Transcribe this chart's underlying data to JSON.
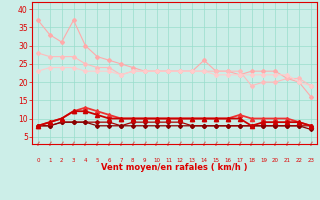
{
  "x": [
    0,
    1,
    2,
    3,
    4,
    5,
    6,
    7,
    8,
    9,
    10,
    11,
    12,
    13,
    14,
    15,
    16,
    17,
    18,
    19,
    20,
    21,
    22,
    23
  ],
  "lines": [
    {
      "y": [
        37,
        33,
        31,
        37,
        30,
        27,
        26,
        25,
        24,
        23,
        23,
        23,
        23,
        23,
        26,
        23,
        23,
        22,
        23,
        23,
        23,
        21,
        20,
        16
      ],
      "color": "#ffaaaa",
      "lw": 0.8,
      "marker": "D",
      "ms": 2.0,
      "zorder": 2
    },
    {
      "y": [
        28,
        27,
        27,
        27,
        25,
        24,
        24,
        22,
        23,
        23,
        23,
        23,
        23,
        23,
        23,
        23,
        23,
        23,
        19,
        20,
        20,
        21,
        21,
        19
      ],
      "color": "#ffbbbb",
      "lw": 0.8,
      "marker": "D",
      "ms": 2.0,
      "zorder": 2
    },
    {
      "y": [
        23,
        24,
        24,
        24,
        23,
        23,
        23,
        22,
        23,
        23,
        23,
        23,
        23,
        23,
        23,
        22,
        22,
        22,
        22,
        22,
        22,
        22,
        20,
        19
      ],
      "color": "#ffcccc",
      "lw": 0.8,
      "marker": "D",
      "ms": 2.0,
      "zorder": 2
    },
    {
      "y": [
        8,
        9,
        10,
        12,
        13,
        12,
        11,
        10,
        10,
        10,
        10,
        10,
        10,
        10,
        10,
        10,
        10,
        11,
        10,
        10,
        10,
        10,
        9,
        8
      ],
      "color": "#ee3333",
      "lw": 1.3,
      "marker": "^",
      "ms": 3.0,
      "zorder": 4
    },
    {
      "y": [
        8,
        9,
        10,
        12,
        12,
        11,
        10,
        10,
        10,
        10,
        10,
        10,
        10,
        10,
        10,
        10,
        10,
        10,
        8,
        9,
        9,
        9,
        9,
        8
      ],
      "color": "#cc0000",
      "lw": 1.3,
      "marker": "^",
      "ms": 3.0,
      "zorder": 4
    },
    {
      "y": [
        8,
        8,
        9,
        9,
        9,
        9,
        9,
        8,
        9,
        9,
        9,
        9,
        9,
        8,
        8,
        8,
        8,
        8,
        8,
        8,
        8,
        8,
        8,
        8
      ],
      "color": "#aa0000",
      "lw": 0.9,
      "marker": "D",
      "ms": 2.0,
      "zorder": 3
    },
    {
      "y": [
        8,
        8,
        9,
        9,
        9,
        8,
        8,
        8,
        8,
        8,
        8,
        8,
        8,
        8,
        8,
        8,
        8,
        8,
        8,
        8,
        8,
        8,
        8,
        7
      ],
      "color": "#880000",
      "lw": 0.9,
      "marker": "D",
      "ms": 2.0,
      "zorder": 3
    }
  ],
  "xlabel": "Vent moyen/en rafales ( km/h )",
  "ylabel_ticks": [
    5,
    10,
    15,
    20,
    25,
    30,
    35,
    40
  ],
  "ylim": [
    3,
    42
  ],
  "xlim": [
    -0.5,
    23.5
  ],
  "bg_color": "#cceee8",
  "grid_color": "#99ddcc",
  "tick_color": "#dd0000",
  "label_color": "#dd0000"
}
